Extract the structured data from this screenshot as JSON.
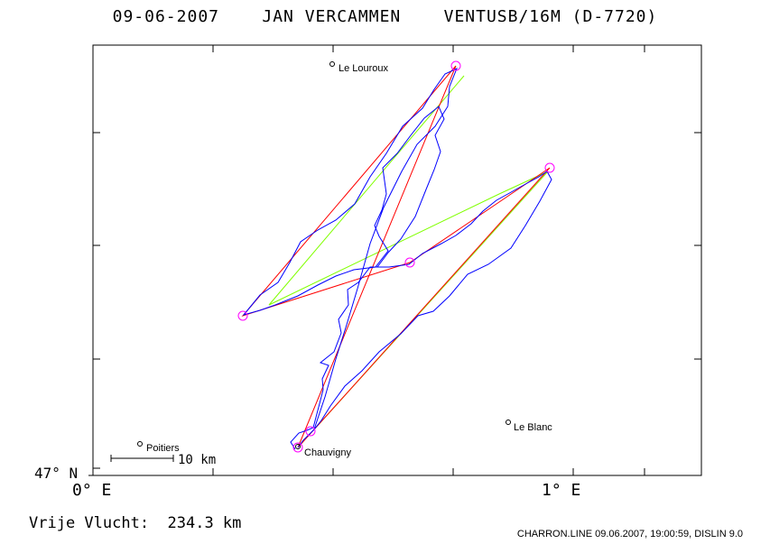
{
  "header": {
    "date": "09-06-2007",
    "pilot": "JAN VERCAMMEN",
    "glider": "VENTUSB/16M (D-7720)"
  },
  "axes": {
    "lat_label": "47° N",
    "lon_labels": [
      "0° E",
      "1° E"
    ]
  },
  "places": [
    {
      "name": "Le Louroux"
    },
    {
      "name": "Le Blanc"
    },
    {
      "name": "Poitiers"
    },
    {
      "name": "Chauvigny"
    }
  ],
  "scale_bar": {
    "label": "10 km"
  },
  "footer": {
    "free_flight": "Vrije Vlucht:  234.3 km",
    "credit": "CHARRON.LINE 09.06.2007, 19:00:59, DISLIN 9.0"
  },
  "colors": {
    "track": "#0000ff",
    "task_leg": "#ff0000",
    "free_flight_leg": "#80ff00",
    "turnpoint_marker": "#ff00ff",
    "frame": "#000000"
  }
}
